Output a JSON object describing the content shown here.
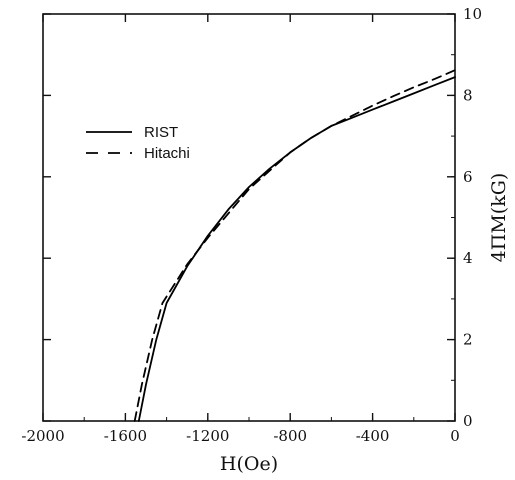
{
  "chart_data": {
    "type": "line",
    "title": "",
    "xlabel": "H(Oe)",
    "ylabel": "4ΠM(kG)",
    "xlim": [
      -2000,
      0
    ],
    "ylim": [
      0,
      10
    ],
    "x_ticks": [
      -2000,
      -1600,
      -1200,
      -800,
      -400,
      0
    ],
    "x_tick_labels": [
      "-2000",
      "-1600",
      "-1200",
      "-800",
      "-400",
      "0"
    ],
    "y_ticks": [
      0,
      2,
      4,
      6,
      8,
      10
    ],
    "y_tick_labels": [
      "0",
      "2",
      "4",
      "6",
      "8",
      "10"
    ],
    "y_axis_side": "right",
    "grid": false,
    "legend_position": "upper-left",
    "series": [
      {
        "name": "RIST",
        "line_style": "solid",
        "color": "#000000",
        "x": [
          -1535,
          -1500,
          -1450,
          -1400,
          -1300,
          -1200,
          -1100,
          -1000,
          -900,
          -800,
          -700,
          -600,
          -500,
          -400,
          -300,
          -200,
          -100,
          0
        ],
        "y": [
          0,
          0.9,
          2.0,
          2.9,
          3.8,
          4.55,
          5.2,
          5.75,
          6.2,
          6.6,
          6.95,
          7.25,
          7.45,
          7.65,
          7.85,
          8.05,
          8.25,
          8.45
        ]
      },
      {
        "name": "Hitachi",
        "line_style": "dashed",
        "color": "#000000",
        "x": [
          -1555,
          -1520,
          -1470,
          -1420,
          -1300,
          -1200,
          -1100,
          -1000,
          -900,
          -800,
          -700,
          -600,
          -500,
          -400,
          -300,
          -200,
          -100,
          0
        ],
        "y": [
          0,
          0.9,
          2.0,
          2.9,
          3.85,
          4.5,
          5.1,
          5.7,
          6.15,
          6.6,
          6.95,
          7.25,
          7.5,
          7.75,
          7.98,
          8.2,
          8.4,
          8.62
        ]
      }
    ]
  }
}
